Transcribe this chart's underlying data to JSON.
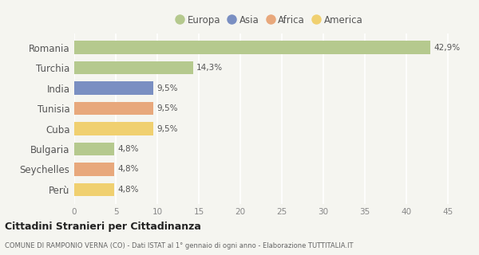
{
  "categories": [
    "Romania",
    "Turchia",
    "India",
    "Tunisia",
    "Cuba",
    "Bulgaria",
    "Seychelles",
    "Perù"
  ],
  "values": [
    42.9,
    14.3,
    9.5,
    9.5,
    9.5,
    4.8,
    4.8,
    4.8
  ],
  "labels": [
    "42,9%",
    "14,3%",
    "9,5%",
    "9,5%",
    "9,5%",
    "4,8%",
    "4,8%",
    "4,8%"
  ],
  "colors": [
    "#b5c98e",
    "#b5c98e",
    "#7a8fc2",
    "#e8a87c",
    "#f0d070",
    "#b5c98e",
    "#e8a87c",
    "#f0d070"
  ],
  "legend": [
    {
      "label": "Europa",
      "color": "#b5c98e"
    },
    {
      "label": "Asia",
      "color": "#7a8fc2"
    },
    {
      "label": "Africa",
      "color": "#e8a87c"
    },
    {
      "label": "America",
      "color": "#f0d070"
    }
  ],
  "xlim": [
    0,
    47
  ],
  "xticks": [
    0,
    5,
    10,
    15,
    20,
    25,
    30,
    35,
    40,
    45
  ],
  "title": "Cittadini Stranieri per Cittadinanza",
  "subtitle": "COMUNE DI RAMPONIO VERNA (CO) - Dati ISTAT al 1° gennaio di ogni anno - Elaborazione TUTTITALIA.IT",
  "bg_color": "#f5f5f0",
  "grid_color": "#ffffff",
  "bar_height": 0.65
}
